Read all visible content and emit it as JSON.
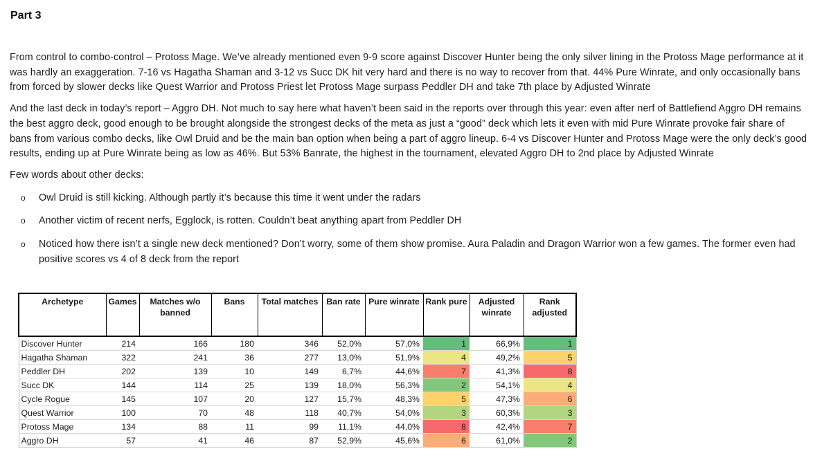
{
  "title": "Part 3",
  "paragraphs": {
    "p1": "From control to combo-control – Protoss Mage. We’ve already mentioned even 9-9 score against Discover Hunter being the only silver lining in the Protoss Mage performance at it was hardly an exaggeration. 7-16 vs Hagatha Shaman and 3-12 vs Succ DK hit very hard and there is no way to recover from that. 44% Pure Winrate, and only occasionally bans from forced by slower decks like Quest Warrior and Protoss Priest let Protoss Mage surpass Peddler DH and take 7th place by Adjusted Winrate",
    "p2": "And the last deck in today’s report – Aggro DH. Not much to say here what haven’t been said in the reports over through this year: even after nerf of Battlefiend Aggro DH remains the best aggro deck, good enough to be brought alongside the strongest decks of the meta as just a “good” deck which lets it even with mid Pure Winrate provoke fair share of bans from various combo decks, like Owl Druid and be the main ban option when being a part of aggro lineup. 6-4 vs Discover Hunter and Protoss Mage were the only deck’s good results, ending up at Pure Winrate being as low as 46%. But 53% Banrate, the highest in the tournament, elevated Aggro DH to 2nd place by Adjusted Winrate",
    "few_words": "Few words about other decks:"
  },
  "bullets": [
    {
      "marker": "o",
      "text": "Owl Druid is still kicking. Although partly it’s because this time it went under the radars"
    },
    {
      "marker": "o",
      "text": "Another victim of recent nerfs, Egglock, is rotten. Couldn’t beat anything apart from Peddler DH"
    },
    {
      "marker": "o",
      "text": "Noticed how there isn’t a single new deck mentioned? Don’t worry, some of them show promise. Aura Paladin and Dragon Warrior won a few games. The former even had positive scores vs 4 of 8 deck from the report"
    }
  ],
  "table": {
    "headers": [
      "Archetype",
      "Games",
      "Matches w/o banned",
      "Bans",
      "Total matches",
      "Ban rate",
      "Pure winrate",
      "Rank pure",
      "Adjusted winrate",
      "Rank adjusted"
    ],
    "rank_colors": {
      "1": "#63BE7B",
      "2": "#84C77C",
      "3": "#B1D580",
      "4": "#EBE583",
      "5": "#FDD26B",
      "6": "#FBAC77",
      "7": "#F97E6C",
      "8": "#F8696B"
    },
    "rows": [
      {
        "archetype": "Discover Hunter",
        "games": "214",
        "matches_wo_banned": "166",
        "bans": "180",
        "total_matches": "346",
        "ban_rate": "52,0%",
        "pure_winrate": "57,0%",
        "rank_pure": "1",
        "adjusted_winrate": "66,9%",
        "rank_adjusted": "1"
      },
      {
        "archetype": "Hagatha Shaman",
        "games": "322",
        "matches_wo_banned": "241",
        "bans": "36",
        "total_matches": "277",
        "ban_rate": "13,0%",
        "pure_winrate": "51,9%",
        "rank_pure": "4",
        "adjusted_winrate": "49,2%",
        "rank_adjusted": "5"
      },
      {
        "archetype": "Peddler DH",
        "games": "202",
        "matches_wo_banned": "139",
        "bans": "10",
        "total_matches": "149",
        "ban_rate": "6,7%",
        "pure_winrate": "44,6%",
        "rank_pure": "7",
        "adjusted_winrate": "41,3%",
        "rank_adjusted": "8"
      },
      {
        "archetype": "Succ DK",
        "games": "144",
        "matches_wo_banned": "114",
        "bans": "25",
        "total_matches": "139",
        "ban_rate": "18,0%",
        "pure_winrate": "56,3%",
        "rank_pure": "2",
        "adjusted_winrate": "54,1%",
        "rank_adjusted": "4"
      },
      {
        "archetype": "Cycle Rogue",
        "games": "145",
        "matches_wo_banned": "107",
        "bans": "20",
        "total_matches": "127",
        "ban_rate": "15,7%",
        "pure_winrate": "48,3%",
        "rank_pure": "5",
        "adjusted_winrate": "47,3%",
        "rank_adjusted": "6"
      },
      {
        "archetype": "Quest Warrior",
        "games": "100",
        "matches_wo_banned": "70",
        "bans": "48",
        "total_matches": "118",
        "ban_rate": "40,7%",
        "pure_winrate": "54,0%",
        "rank_pure": "3",
        "adjusted_winrate": "60,3%",
        "rank_adjusted": "3"
      },
      {
        "archetype": "Protoss Mage",
        "games": "134",
        "matches_wo_banned": "88",
        "bans": "11",
        "total_matches": "99",
        "ban_rate": "11,1%",
        "pure_winrate": "44,0%",
        "rank_pure": "8",
        "adjusted_winrate": "42,4%",
        "rank_adjusted": "7"
      },
      {
        "archetype": "Aggro DH",
        "games": "57",
        "matches_wo_banned": "41",
        "bans": "46",
        "total_matches": "87",
        "ban_rate": "52,9%",
        "pure_winrate": "45,6%",
        "rank_pure": "6",
        "adjusted_winrate": "61,0%",
        "rank_adjusted": "2"
      }
    ]
  }
}
